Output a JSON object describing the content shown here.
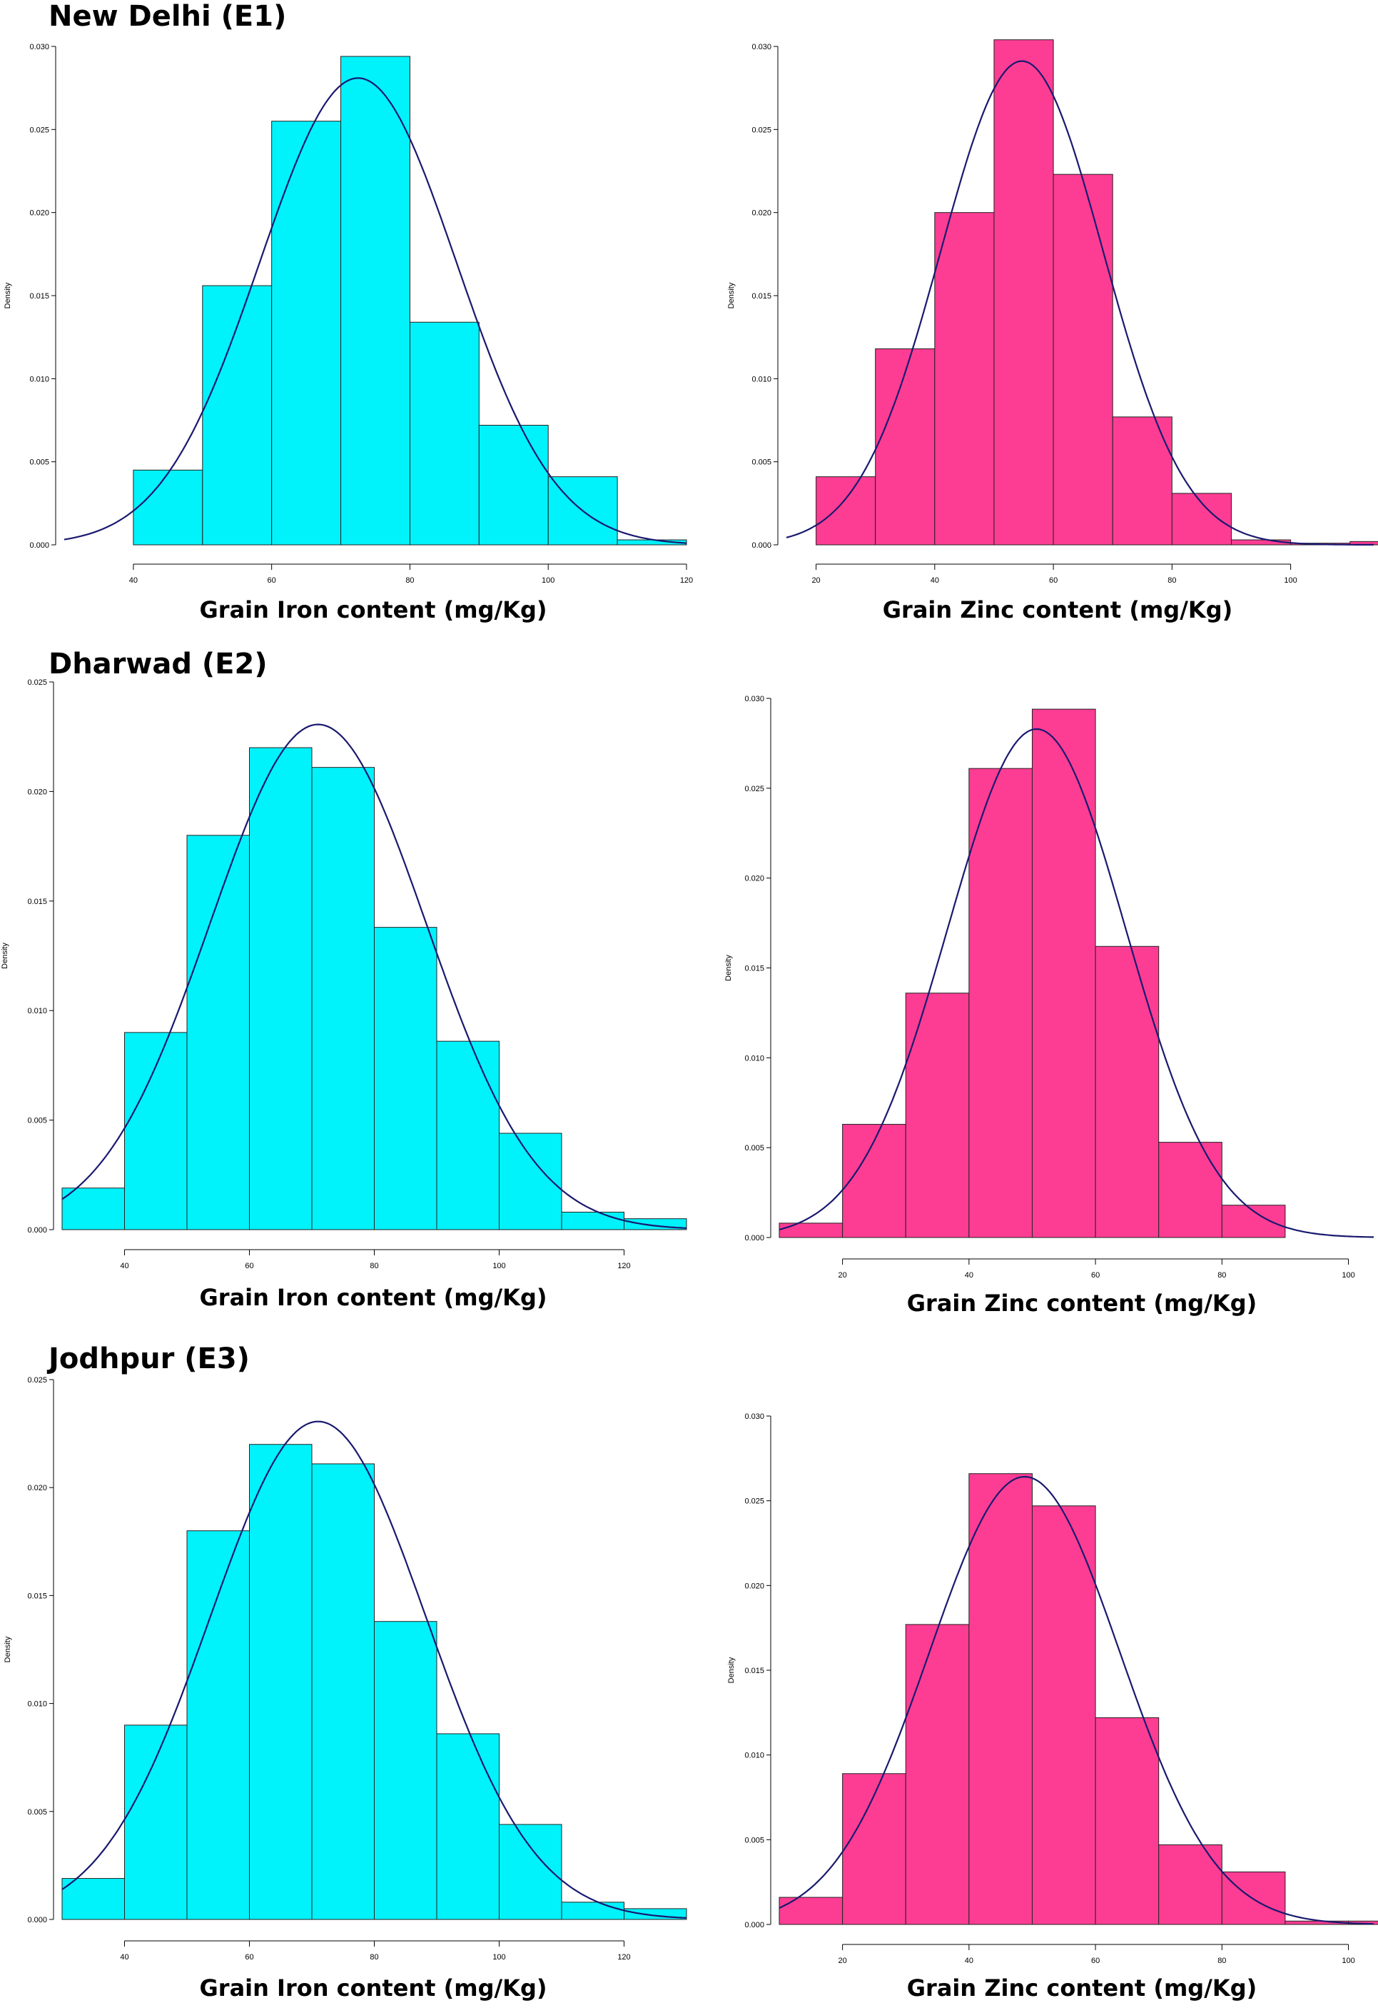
{
  "colors": {
    "iron": "#00f2fb",
    "zinc": "#fc3d93",
    "curve": "#191970",
    "outline": "#222222"
  },
  "chart_data": [
    {
      "type": "bar",
      "id": "delhi-iron",
      "title": "New Delhi (E1)",
      "xlabel": "Grain Iron content (mg/Kg)",
      "ylabel": "Density",
      "bin_edges": [
        40,
        50,
        60,
        70,
        80,
        90,
        100,
        110,
        120
      ],
      "values": [
        0.0045,
        0.0156,
        0.0255,
        0.0294,
        0.0134,
        0.0072,
        0.0041,
        0.0003
      ],
      "xlim": [
        30,
        120
      ],
      "ylim": [
        0,
        0.03
      ],
      "xticks": [
        "40",
        "60",
        "80",
        "100",
        "120"
      ],
      "yticks": [
        "0.000",
        "0.005",
        "0.010",
        "0.015",
        "0.020",
        "0.025",
        "0.030"
      ],
      "fit": {
        "type": "normal",
        "mean": 72.5,
        "sd": 14.2
      }
    },
    {
      "type": "bar",
      "id": "delhi-zinc",
      "title": "",
      "xlabel": "Grain Zinc content (mg/Kg)",
      "ylabel": "Density",
      "bin_edges": [
        20,
        30,
        40,
        50,
        60,
        70,
        80,
        90,
        100,
        110,
        120
      ],
      "values": [
        0.0041,
        0.0118,
        0.02,
        0.0304,
        0.0223,
        0.0077,
        0.0031,
        0.0003,
        0.0001,
        0.0002
      ],
      "xlim": [
        15,
        114
      ],
      "ylim": [
        0,
        0.03
      ],
      "xticks": [
        "20",
        "40",
        "60",
        "80",
        "100"
      ],
      "yticks": [
        "0.000",
        "0.005",
        "0.010",
        "0.015",
        "0.020",
        "0.025",
        "0.030"
      ],
      "fit": {
        "type": "normal",
        "mean": 54.7,
        "sd": 13.7
      }
    },
    {
      "type": "bar",
      "id": "dharwad-iron",
      "title": "Dharwad (E2)",
      "xlabel": "Grain Iron content (mg/Kg)",
      "ylabel": "Density",
      "bin_edges": [
        30,
        40,
        50,
        60,
        70,
        80,
        90,
        100,
        110,
        120,
        130
      ],
      "values": [
        0.0019,
        0.009,
        0.018,
        0.022,
        0.0211,
        0.0138,
        0.0086,
        0.0044,
        0.0008,
        0.0005
      ],
      "xlim": [
        30,
        130
      ],
      "ylim": [
        0,
        0.025
      ],
      "xticks": [
        "40",
        "60",
        "80",
        "100",
        "120"
      ],
      "yticks": [
        "0.000",
        "0.005",
        "0.010",
        "0.015",
        "0.020",
        "0.025"
      ],
      "fit": {
        "type": "normal",
        "mean": 71.0,
        "sd": 17.3
      }
    },
    {
      "type": "bar",
      "id": "dharwad-zinc",
      "title": "",
      "xlabel": "Grain Zinc content (mg/Kg)",
      "ylabel": "Density",
      "bin_edges": [
        10,
        20,
        30,
        40,
        50,
        60,
        70,
        80,
        90
      ],
      "values": [
        0.0008,
        0.0063,
        0.0136,
        0.0261,
        0.0294,
        0.0162,
        0.0053,
        0.0018
      ],
      "xlim": [
        10,
        104
      ],
      "ylim": [
        0,
        0.03
      ],
      "xticks": [
        "20",
        "40",
        "60",
        "80",
        "100"
      ],
      "yticks": [
        "0.000",
        "0.005",
        "0.010",
        "0.015",
        "0.020",
        "0.025",
        "0.030"
      ],
      "fit": {
        "type": "normal",
        "mean": 50.7,
        "sd": 14.1
      }
    },
    {
      "type": "bar",
      "id": "jodhpur-iron",
      "title": "Jodhpur (E3)",
      "xlabel": "Grain Iron content (mg/Kg)",
      "ylabel": "Density",
      "bin_edges": [
        30,
        40,
        50,
        60,
        70,
        80,
        90,
        100,
        110,
        120,
        130
      ],
      "values": [
        0.0019,
        0.009,
        0.018,
        0.022,
        0.0211,
        0.0138,
        0.0086,
        0.0044,
        0.0008,
        0.0005
      ],
      "xlim": [
        30,
        130
      ],
      "ylim": [
        0,
        0.025
      ],
      "xticks": [
        "40",
        "60",
        "80",
        "100",
        "120"
      ],
      "yticks": [
        "0.000",
        "0.005",
        "0.010",
        "0.015",
        "0.020",
        "0.025"
      ],
      "fit": {
        "type": "normal",
        "mean": 71.0,
        "sd": 17.3
      }
    },
    {
      "type": "bar",
      "id": "jodhpur-zinc",
      "title": "",
      "xlabel": "Grain Zinc content (mg/Kg)",
      "ylabel": "Density",
      "bin_edges": [
        10,
        20,
        30,
        40,
        50,
        60,
        70,
        80,
        90,
        100,
        110
      ],
      "values": [
        0.0016,
        0.0089,
        0.0177,
        0.0266,
        0.0247,
        0.0122,
        0.0047,
        0.0031,
        0.0002,
        0.0002
      ],
      "xlim": [
        10,
        104
      ],
      "ylim": [
        0,
        0.03
      ],
      "xticks": [
        "20",
        "40",
        "60",
        "80",
        "100"
      ],
      "yticks": [
        "0.000",
        "0.005",
        "0.010",
        "0.015",
        "0.020",
        "0.025",
        "0.030"
      ],
      "fit": {
        "type": "normal",
        "mean": 48.8,
        "sd": 15.1
      }
    }
  ]
}
